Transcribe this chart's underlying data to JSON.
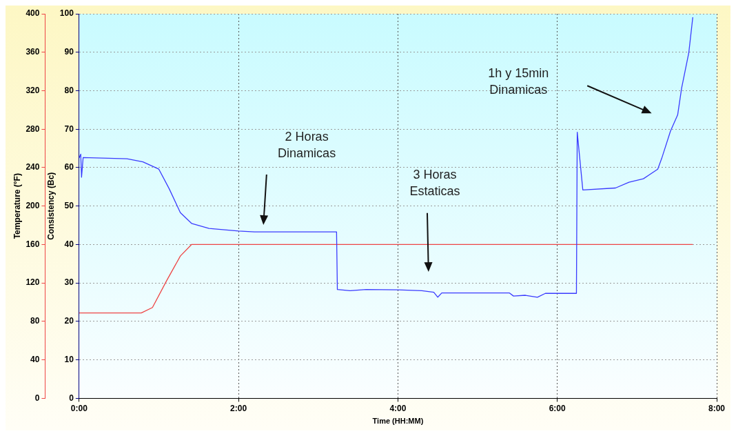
{
  "chart_data": {
    "type": "line",
    "xlabel": "Time (HH:MM)",
    "ylabel": "Consistency (Bc)",
    "y2label": "Temperature (°F)",
    "xlim": [
      0,
      8
    ],
    "xticks": [
      {
        "value": 0,
        "label": "0:00"
      },
      {
        "value": 2,
        "label": "2:00"
      },
      {
        "value": 4,
        "label": "4:00"
      },
      {
        "value": 6,
        "label": "6:00"
      },
      {
        "value": 8,
        "label": "8:00"
      }
    ],
    "ylim": [
      0,
      100
    ],
    "yticks": [
      0,
      10,
      20,
      30,
      40,
      50,
      60,
      70,
      80,
      90,
      100
    ],
    "y2lim": [
      0,
      400
    ],
    "y2ticks": [
      0,
      40,
      80,
      120,
      160,
      200,
      240,
      280,
      320,
      360,
      400
    ],
    "grid": true,
    "legend": false,
    "series": [
      {
        "color": "#3a3aff",
        "x": [
          0,
          0.02,
          0.03,
          0.05,
          0.6,
          0.8,
          1.0,
          1.13,
          1.27,
          1.41,
          1.63,
          2.0,
          2.2,
          3.23,
          3.24,
          3.4,
          3.6,
          4.0,
          4.3,
          4.45,
          4.5,
          4.55,
          5.4,
          5.45,
          5.6,
          5.75,
          5.85,
          6.24,
          6.25,
          6.32,
          6.73,
          6.9,
          7.08,
          7.26,
          7.31,
          7.42,
          7.51,
          7.56,
          7.65,
          7.7
        ],
        "values": [
          62.5,
          63.5,
          57.5,
          62.6,
          62.3,
          61.5,
          59.6,
          54.5,
          48.3,
          45.5,
          44.2,
          43.5,
          43.3,
          43.3,
          28.3,
          28.0,
          28.3,
          28.2,
          28.0,
          27.6,
          26.3,
          27.4,
          27.4,
          26.6,
          26.8,
          26.3,
          27.3,
          27.3,
          69.2,
          54.2,
          54.7,
          56.2,
          57.1,
          59.6,
          62.4,
          69.5,
          73.7,
          80.7,
          89.9,
          99.1
        ]
      },
      {
        "color": "#ee4444",
        "axis": "y2",
        "x": [
          0,
          0.78,
          0.92,
          1.1,
          1.27,
          1.41,
          2.0,
          4.0,
          6.0,
          7.7
        ],
        "values": [
          88.8,
          88.8,
          94.5,
          122.7,
          148,
          160,
          160,
          160,
          160,
          160
        ]
      }
    ],
    "annotations": [
      "2 Horas\nDinamicas",
      "3 Horas\nEstaticas",
      "1h y 15min\nDinamicas"
    ]
  }
}
